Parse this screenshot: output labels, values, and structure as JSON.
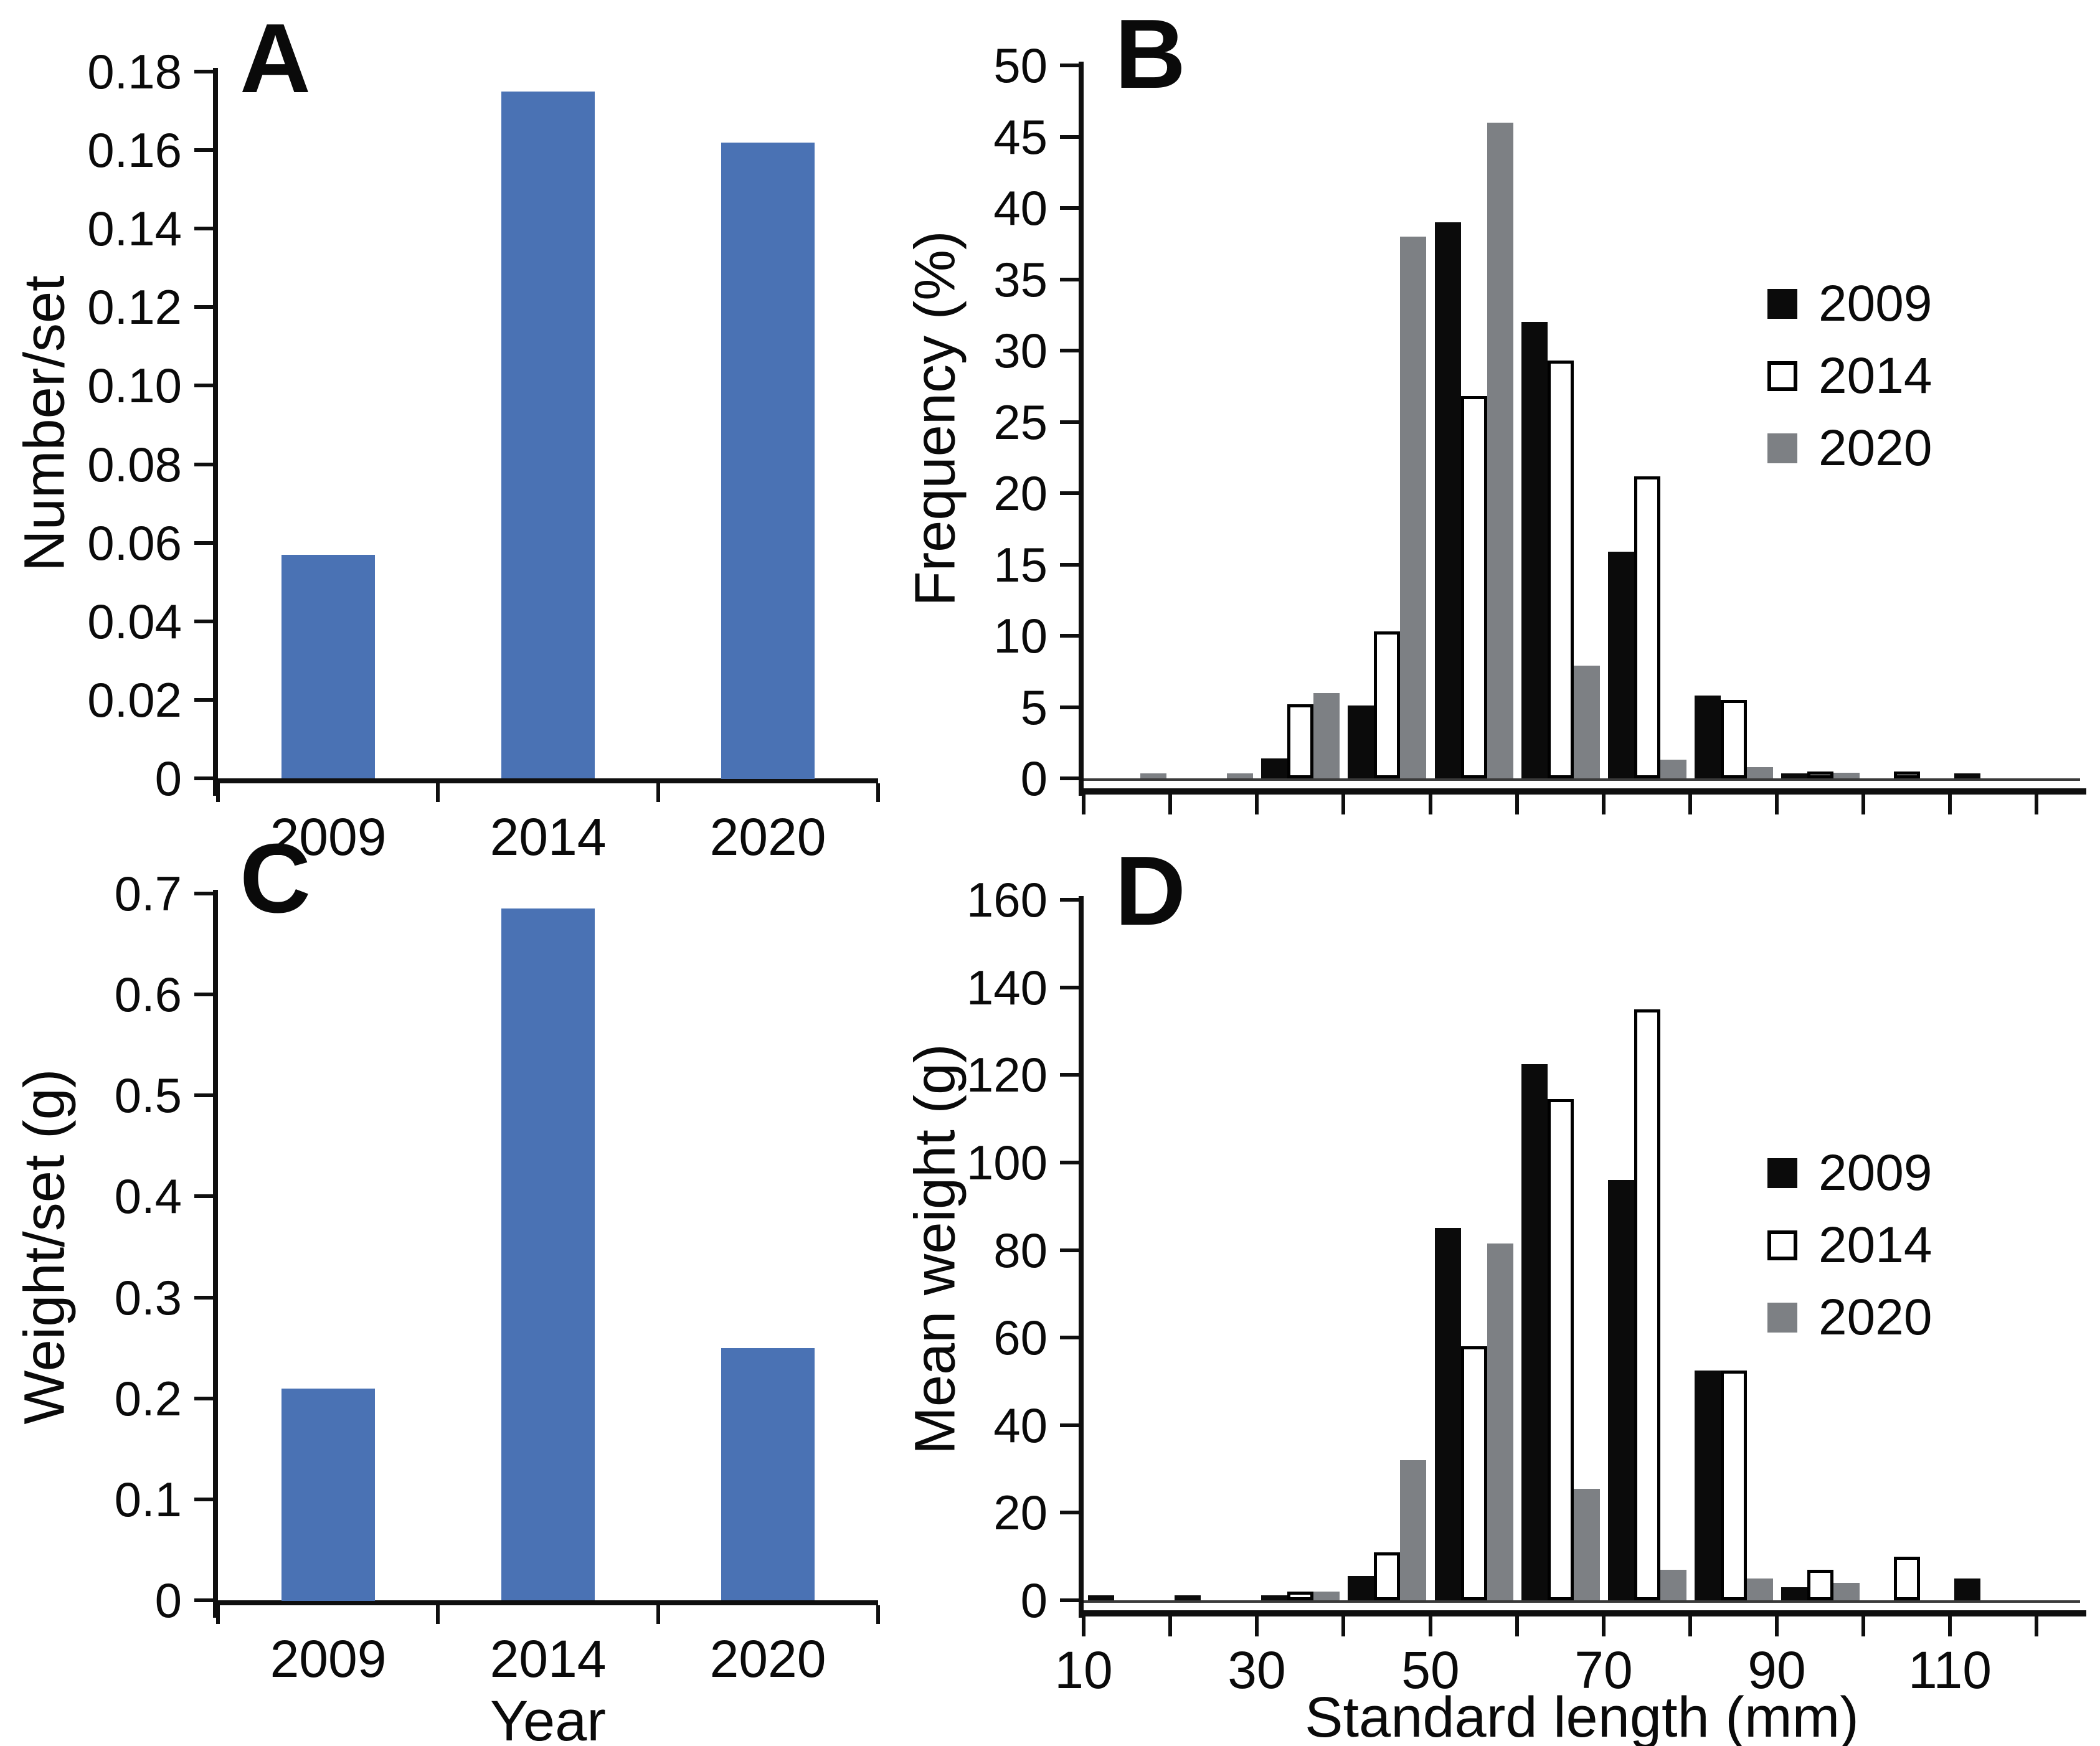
{
  "figure": {
    "description": "Four-panel fish catch figure",
    "panel_letters": [
      "A",
      "B",
      "C",
      "D"
    ],
    "accent_blue": "#4a72b4",
    "series_black": "#0b0b0b",
    "series_white": "#ffffff",
    "series_gray": "#7d8084"
  },
  "chart_data": [
    {
      "panel": "A",
      "type": "bar",
      "title": "",
      "ylabel": "Number/set",
      "xlabel": "",
      "categories": [
        "2009",
        "2014",
        "2020"
      ],
      "values": [
        0.057,
        0.175,
        0.162
      ],
      "ylim": [
        0,
        0.18
      ],
      "ytick_step": 0.02,
      "ytick_decimals": 2,
      "grid": false,
      "legend_position": "none",
      "bar_color": "#4a72b4"
    },
    {
      "panel": "B",
      "type": "bar",
      "subtype": "grouped-histogram",
      "title": "",
      "ylabel": "Frequency (%)",
      "xlabel": "",
      "bin_edges": [
        10,
        20,
        30,
        40,
        50,
        60,
        70,
        80,
        90,
        100,
        110,
        120
      ],
      "bin_labels": [
        "10-20",
        "20-30",
        "30-40",
        "40-50",
        "50-60",
        "60-70",
        "70-80",
        "80-90",
        "90-100",
        "100-110",
        "110-120"
      ],
      "x_tick_values": [
        10,
        20,
        30,
        40,
        50,
        60,
        70,
        80,
        90,
        100,
        110,
        120
      ],
      "x_tick_labels_shown": false,
      "series": [
        {
          "name": "2009",
          "color": "#0b0b0b",
          "values": [
            0,
            0,
            1.4,
            5.1,
            39,
            32,
            15.9,
            5.8,
            0.3,
            0,
            0.3
          ]
        },
        {
          "name": "2014",
          "color": "#ffffff",
          "outline": "#000000",
          "values": [
            0,
            0,
            5.2,
            10.3,
            26.8,
            29.3,
            21.2,
            5.5,
            0.5,
            0.5,
            0
          ]
        },
        {
          "name": "2020",
          "color": "#7d8084",
          "values": [
            0.3,
            0.3,
            6,
            38,
            46,
            7.9,
            1.3,
            0.8,
            0.4,
            0,
            0
          ]
        }
      ],
      "ylim": [
        0,
        50
      ],
      "ytick_step": 5,
      "ytick_decimals": 0,
      "grid": false,
      "legend": {
        "entries": [
          "2009",
          "2014",
          "2020"
        ],
        "position": "upper-right"
      }
    },
    {
      "panel": "C",
      "type": "bar",
      "title": "",
      "ylabel": "Weight/set (g)",
      "xlabel": "Year",
      "categories": [
        "2009",
        "2014",
        "2020"
      ],
      "values": [
        0.21,
        0.685,
        0.25
      ],
      "ylim": [
        0,
        0.7
      ],
      "ytick_step": 0.1,
      "ytick_decimals": 1,
      "grid": false,
      "legend_position": "none",
      "bar_color": "#4a72b4"
    },
    {
      "panel": "D",
      "type": "bar",
      "subtype": "grouped-histogram",
      "title": "",
      "ylabel": "Mean weight (g)",
      "xlabel": "Standard length (mm)",
      "bin_edges": [
        10,
        20,
        30,
        40,
        50,
        60,
        70,
        80,
        90,
        100,
        110,
        120
      ],
      "bin_labels": [
        "10-20",
        "20-30",
        "30-40",
        "40-50",
        "50-60",
        "60-70",
        "70-80",
        "80-90",
        "90-100",
        "100-110",
        "110-120"
      ],
      "x_tick_values": [
        10,
        20,
        30,
        40,
        50,
        60,
        70,
        80,
        90,
        100,
        110,
        120
      ],
      "x_tick_labels": [
        "10",
        "30",
        "50",
        "70",
        "90",
        "110"
      ],
      "x_tick_labels_shown": true,
      "series": [
        {
          "name": "2009",
          "color": "#0b0b0b",
          "values": [
            0.4,
            0.4,
            1,
            5.5,
            85,
            122.5,
            96,
            52.5,
            3,
            0,
            5
          ]
        },
        {
          "name": "2014",
          "color": "#ffffff",
          "outline": "#000000",
          "values": [
            0,
            0,
            2,
            11,
            58,
            114.5,
            135,
            52.5,
            7,
            10,
            0
          ]
        },
        {
          "name": "2020",
          "color": "#7d8084",
          "values": [
            0,
            0,
            2,
            32,
            81.5,
            25.5,
            7,
            5,
            4,
            0,
            0
          ]
        }
      ],
      "ylim": [
        0,
        160
      ],
      "ytick_step": 20,
      "ytick_decimals": 0,
      "grid": false,
      "legend": {
        "entries": [
          "2009",
          "2014",
          "2020"
        ],
        "position": "right"
      }
    }
  ]
}
